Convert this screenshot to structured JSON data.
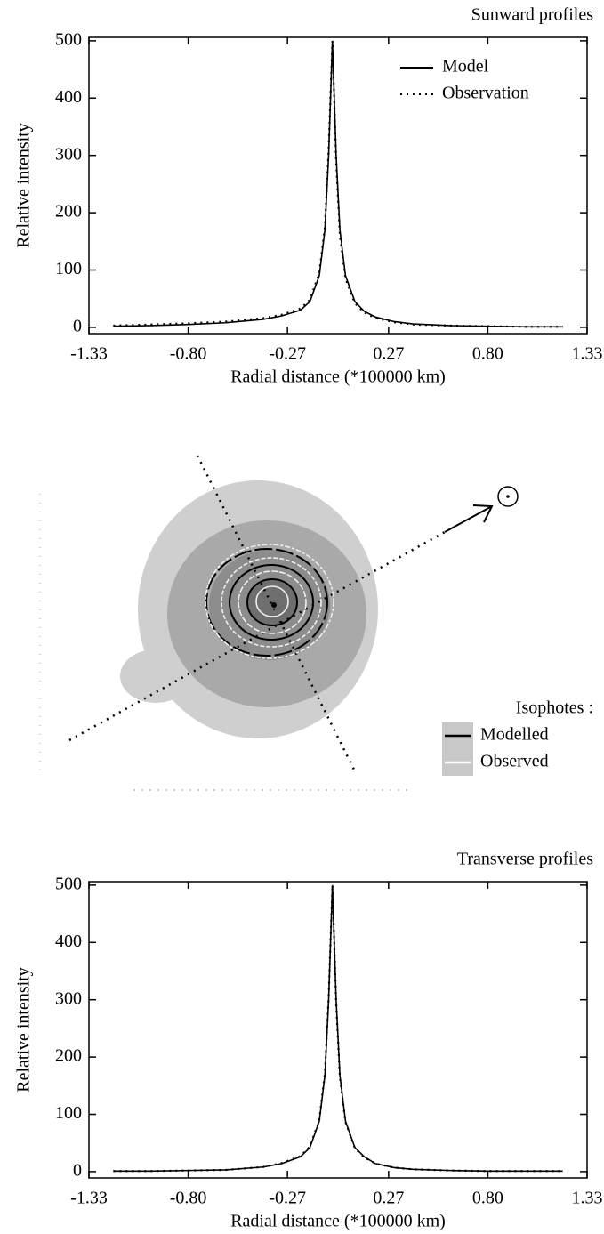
{
  "chart_data": [
    {
      "type": "line",
      "title": "Sunward profiles",
      "x_label": "Radial distance (*100000 km)",
      "y_label": "Relative intensity",
      "x": [
        -1.2,
        -1.0,
        -0.8,
        -0.6,
        -0.4,
        -0.3,
        -0.2,
        -0.15,
        -0.1,
        -0.07,
        -0.05,
        -0.03,
        -0.01,
        0.01,
        0.04,
        0.09,
        0.14,
        0.2,
        0.3,
        0.4,
        0.6,
        0.8,
        1.0,
        1.2
      ],
      "series": [
        {
          "name": "Model",
          "color": "#000000",
          "style": "solid",
          "values": [
            2,
            3,
            5,
            8,
            14,
            20,
            30,
            45,
            90,
            170,
            300,
            500,
            300,
            170,
            90,
            45,
            28,
            18,
            10,
            6,
            3,
            2,
            1,
            1
          ]
        },
        {
          "name": "Observation",
          "color": "#000000",
          "style": "dotted",
          "values": [
            3,
            5,
            7,
            10,
            16,
            22,
            33,
            48,
            95,
            175,
            310,
            500,
            290,
            160,
            85,
            42,
            26,
            16,
            9,
            5,
            3,
            2,
            1,
            1
          ]
        }
      ],
      "xlim": [
        -1.33,
        1.33
      ],
      "xticks": [
        -1.33,
        {
          "value": -0.8,
          "label": "-0.80"
        },
        -0.27,
        0.27,
        {
          "value": 0.8,
          "label": "0.80"
        },
        1.33
      ],
      "ylim": [
        -11,
        506
      ],
      "yticks": [
        0,
        100,
        200,
        300,
        400,
        500
      ],
      "legend": "upper right"
    },
    {
      "type": "line",
      "title": "Transverse profiles",
      "x_label": "Radial distance (*100000 km)",
      "y_label": "Relative intensity",
      "x": [
        -1.2,
        -1.0,
        -0.8,
        -0.6,
        -0.4,
        -0.3,
        -0.2,
        -0.15,
        -0.1,
        -0.07,
        -0.05,
        -0.03,
        -0.01,
        0.01,
        0.04,
        0.09,
        0.14,
        0.2,
        0.3,
        0.4,
        0.6,
        0.8,
        1.0,
        1.2
      ],
      "series": [
        {
          "color": "#000000",
          "style": "solid",
          "values": [
            1,
            1,
            2,
            3,
            8,
            14,
            26,
            42,
            88,
            168,
            300,
            500,
            300,
            168,
            88,
            42,
            26,
            14,
            7,
            4,
            2,
            1,
            1,
            1
          ]
        },
        {
          "color": "#000000",
          "style": "dotted",
          "values": [
            1,
            1,
            2,
            3,
            8,
            15,
            27,
            44,
            90,
            172,
            305,
            500,
            295,
            165,
            86,
            41,
            25,
            14,
            7,
            4,
            2,
            1,
            1,
            1
          ]
        }
      ],
      "xlim": [
        -1.33,
        1.33
      ],
      "xticks": [
        -1.33,
        {
          "value": -0.8,
          "label": "-0.80"
        },
        -0.27,
        0.27,
        {
          "value": 0.8,
          "label": "0.80"
        },
        1.33
      ],
      "ylim": [
        -11,
        506
      ],
      "yticks": [
        0,
        100,
        200,
        300,
        400,
        500
      ],
      "legend": "none"
    }
  ],
  "image_panel": {
    "legend_title": "Isophotes :",
    "legend": [
      "Modelled",
      "Observed"
    ]
  }
}
